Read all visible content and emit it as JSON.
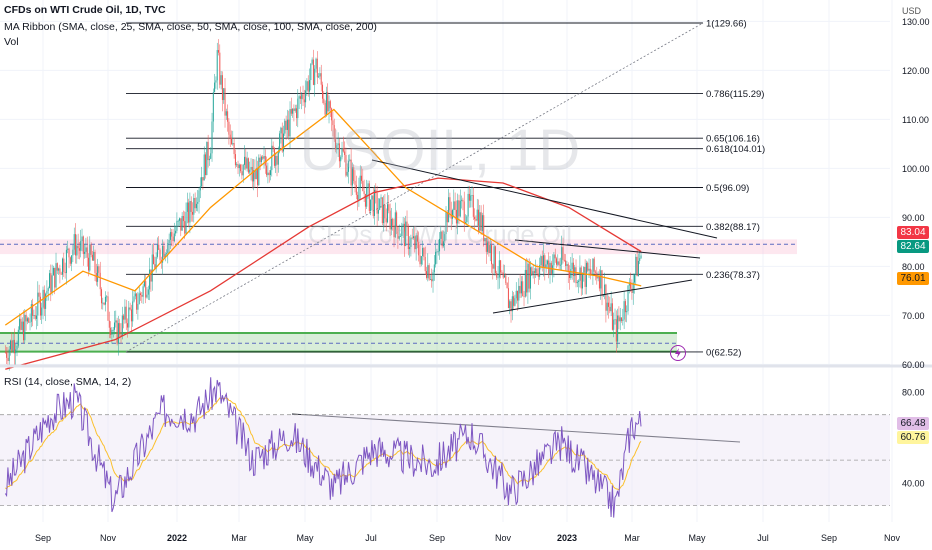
{
  "header": {
    "symbol_title": "CFDs on WTI Crude Oil, 1D, TVC",
    "ma_ribbon": "MA Ribbon (SMA, close, 25, SMA, close, 50, SMA, close, 100, SMA, close, 200)",
    "vol": "Vol",
    "currency": "USD"
  },
  "watermark": {
    "line1": "USOIL, 1D",
    "line2": "CFDs on WTI Crude Oil"
  },
  "price_axis": {
    "ticks": [
      "130.00",
      "120.00",
      "110.00",
      "100.00",
      "90.00",
      "80.00",
      "70.00",
      "60.00"
    ]
  },
  "price_tags": [
    {
      "label": "83.04",
      "value": 83.04,
      "bg": "#f23645",
      "fg": "#ffffff"
    },
    {
      "label": "82.64",
      "value": 82.64,
      "bg": "#089981",
      "fg": "#ffffff"
    },
    {
      "label": "76.01",
      "value": 76.01,
      "bg": "#ff9800",
      "fg": "#131722"
    }
  ],
  "fib_levels": [
    {
      "label": "1(129.66)",
      "value": 129.66
    },
    {
      "label": "0.786(115.29)",
      "value": 115.29
    },
    {
      "label": "0.65(106.16)",
      "value": 106.16
    },
    {
      "label": "0.618(104.01)",
      "value": 104.01
    },
    {
      "label": "0.5(96.09)",
      "value": 96.09
    },
    {
      "label": "0.382(88.17)",
      "value": 88.17
    },
    {
      "label": "0.236(78.37)",
      "value": 78.37
    },
    {
      "label": "0(62.52)",
      "value": 62.52
    }
  ],
  "rsi": {
    "title": "RSI (14, close, SMA, 14, 2)",
    "ticks": [
      "80.00",
      "40.00"
    ],
    "tags": [
      {
        "label": "66.48",
        "value": 66.48,
        "bg": "#e1bee7",
        "fg": "#131722"
      },
      {
        "label": "60.76",
        "value": 60.76,
        "bg": "#fff59d",
        "fg": "#131722"
      }
    ]
  },
  "time_axis": [
    "Sep",
    "Nov",
    "2022",
    "Mar",
    "May",
    "Jul",
    "Sep",
    "Nov",
    "2023",
    "Mar",
    "May",
    "Jul",
    "Sep",
    "Nov"
  ],
  "colors": {
    "ma_red": "#e53935",
    "ma_orange": "#ff9800",
    "rsi_line": "#7e57c2",
    "rsi_ma": "#fbc02d",
    "support_zone": "#4caf50",
    "candle_up": "#26a69a",
    "candle_down": "#ef5350"
  },
  "chart_data": {
    "type": "candlestick",
    "title": "CFDs on WTI Crude Oil, 1D, TVC",
    "y_unit": "USD",
    "ylim": [
      58,
      135
    ],
    "x_range": [
      "2021-08-15",
      "2023-11-30"
    ],
    "series": [
      {
        "name": "WTI close",
        "x": [
          "2021-08-20",
          "2021-09-15",
          "2021-10-10",
          "2021-10-25",
          "2021-11-10",
          "2021-12-01",
          "2021-12-20",
          "2022-01-15",
          "2022-02-10",
          "2022-03-01",
          "2022-03-07",
          "2022-03-20",
          "2022-04-10",
          "2022-05-01",
          "2022-06-08",
          "2022-06-25",
          "2022-07-15",
          "2022-08-01",
          "2022-08-20",
          "2022-09-10",
          "2022-09-26",
          "2022-10-10",
          "2022-11-05",
          "2022-12-08",
          "2022-12-30",
          "2023-01-25",
          "2023-02-15",
          "2023-03-01",
          "2023-03-17",
          "2023-03-28",
          "2023-04-10"
        ],
        "values": [
          62.5,
          70.0,
          80.0,
          84.5,
          81.0,
          66.0,
          72.0,
          84.0,
          91.0,
          105.0,
          123.0,
          104.0,
          98.0,
          103.0,
          121.0,
          107.0,
          97.0,
          93.0,
          89.0,
          84.0,
          78.5,
          91.5,
          92.0,
          72.0,
          80.0,
          81.0,
          78.0,
          79.0,
          66.5,
          74.0,
          82.6
        ]
      },
      {
        "name": "SMA 200",
        "x": [
          "2021-08-20",
          "2021-12-01",
          "2022-03-01",
          "2022-06-01",
          "2022-08-01",
          "2022-10-01",
          "2022-12-01",
          "2023-02-01",
          "2023-04-10"
        ],
        "values": [
          59.0,
          65.0,
          75.0,
          88.0,
          95.0,
          98.0,
          97.0,
          92.0,
          83.0
        ]
      },
      {
        "name": "SMA 50",
        "x": [
          "2021-08-20",
          "2021-11-01",
          "2021-12-20",
          "2022-03-01",
          "2022-05-01",
          "2022-06-25",
          "2022-09-01",
          "2022-11-01",
          "2023-01-01",
          "2023-03-01",
          "2023-04-10"
        ],
        "values": [
          68.0,
          79.0,
          75.0,
          92.0,
          103.0,
          112.0,
          96.0,
          88.0,
          80.0,
          78.0,
          76.0
        ]
      }
    ],
    "lines": [
      {
        "label": "1(129.66)",
        "value": 129.66
      },
      {
        "label": "0.786(115.29)",
        "value": 115.29
      },
      {
        "label": "0.65(106.16)",
        "value": 106.16
      },
      {
        "label": "0.618(104.01)",
        "value": 104.01
      },
      {
        "label": "0.5(96.09)",
        "value": 96.09
      },
      {
        "label": "0.382(88.17)",
        "value": 88.17
      },
      {
        "label": "0.236(78.37)",
        "value": 78.37
      },
      {
        "label": "0(62.52)",
        "value": 62.52
      }
    ],
    "rsi": {
      "name": "RSI (14, close, SMA, 14, 2)",
      "ylim": [
        25,
        90
      ],
      "x": [
        "2021-08-20",
        "2021-10-01",
        "2021-10-25",
        "2021-11-30",
        "2022-01-15",
        "2022-02-15",
        "2022-03-07",
        "2022-04-10",
        "2022-05-15",
        "2022-06-25",
        "2022-08-01",
        "2022-09-26",
        "2022-11-01",
        "2022-12-08",
        "2023-01-25",
        "2023-03-17",
        "2023-04-01",
        "2023-04-10"
      ],
      "values": [
        38,
        70,
        77,
        32,
        72,
        70,
        82,
        50,
        62,
        38,
        55,
        48,
        62,
        36,
        58,
        30,
        66,
        66.5
      ]
    }
  }
}
